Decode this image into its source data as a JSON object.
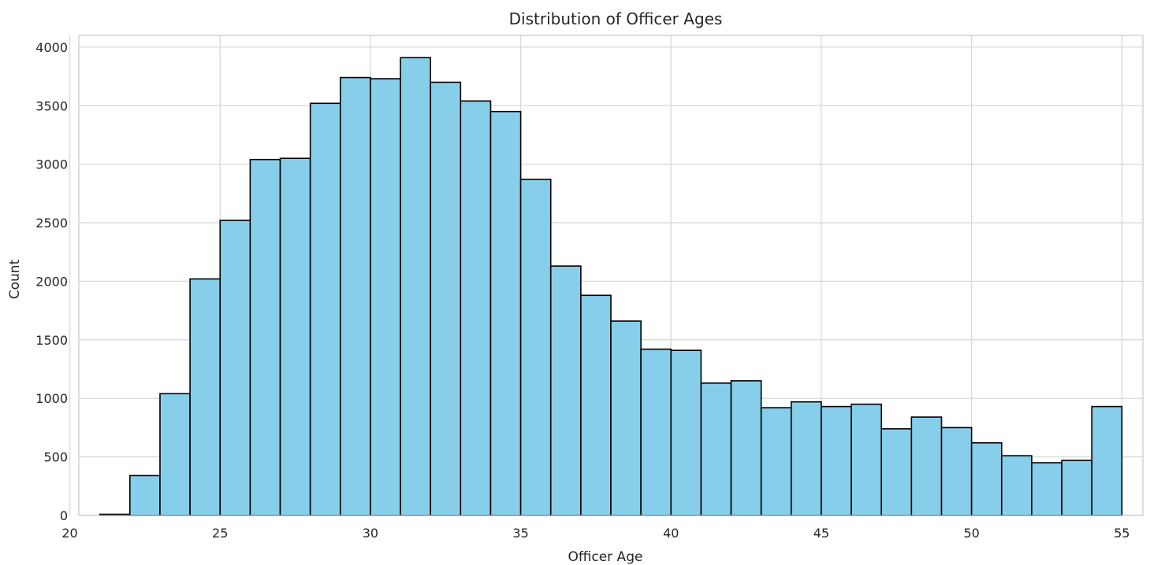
{
  "chart_data": {
    "type": "bar",
    "subtype": "histogram",
    "title": "Distribution of Officer Ages",
    "xlabel": "Officer Age",
    "ylabel": "Count",
    "xlim": [
      20.3,
      55.7
    ],
    "ylim": [
      0,
      4100
    ],
    "xticks": [
      20,
      25,
      30,
      35,
      40,
      45,
      50,
      55
    ],
    "yticks": [
      0,
      500,
      1000,
      1500,
      2000,
      2500,
      3000,
      3500,
      4000
    ],
    "bin_edges": [
      21,
      22,
      23,
      24,
      25,
      26,
      27,
      28,
      29,
      30,
      31,
      32,
      33,
      34,
      35,
      36,
      37,
      38,
      39,
      40,
      41,
      42,
      43,
      44,
      45,
      46,
      47,
      48,
      49,
      50,
      51,
      52,
      53,
      54,
      55
    ],
    "values": [
      10,
      340,
      1040,
      2020,
      2520,
      3040,
      3050,
      3520,
      3740,
      3730,
      3910,
      3700,
      3540,
      3450,
      2870,
      2130,
      1880,
      1660,
      1420,
      1410,
      1130,
      1150,
      920,
      970,
      930,
      950,
      740,
      840,
      750,
      620,
      510,
      450,
      470,
      930
    ],
    "grid": true,
    "colors": {
      "bar_fill": "#87CEEB",
      "bar_edge": "#000000",
      "grid": "#d9d9d9"
    }
  }
}
